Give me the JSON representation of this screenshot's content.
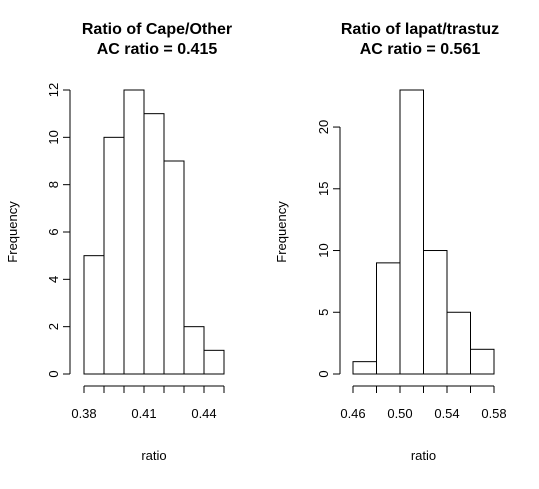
{
  "chart_data": [
    {
      "type": "histogram",
      "title": [
        "Ratio of Cape/Other",
        "AC ratio = 0.415"
      ],
      "xlabel": "ratio",
      "ylabel": "Frequency",
      "bin_edges": [
        0.38,
        0.39,
        0.4,
        0.41,
        0.42,
        0.43,
        0.44,
        0.45
      ],
      "counts": [
        5,
        10,
        12,
        11,
        9,
        2,
        1
      ],
      "xlim": [
        0.38,
        0.45
      ],
      "ylim": [
        0,
        12
      ],
      "xticks": [
        0.38,
        0.41,
        0.44
      ],
      "xtick_labels": [
        "0.38",
        "0.41",
        "0.44"
      ],
      "yticks": [
        0,
        2,
        4,
        6,
        8,
        10,
        12
      ],
      "ytick_labels": [
        "0",
        "2",
        "4",
        "6",
        "8",
        "10",
        "12"
      ]
    },
    {
      "type": "histogram",
      "title": [
        "Ratio of lapat/trastuz",
        "AC ratio = 0.561"
      ],
      "xlabel": "ratio",
      "ylabel": "Frequency",
      "bin_edges": [
        0.46,
        0.48,
        0.5,
        0.52,
        0.54,
        0.56,
        0.58
      ],
      "counts": [
        1,
        9,
        23,
        10,
        5,
        2
      ],
      "xlim": [
        0.46,
        0.58
      ],
      "ylim": [
        0,
        23
      ],
      "xticks": [
        0.46,
        0.5,
        0.54,
        0.58
      ],
      "xtick_labels": [
        "0.46",
        "0.50",
        "0.54",
        "0.58"
      ],
      "extra_xticks": [
        0.48,
        0.52,
        0.56
      ],
      "yticks": [
        0,
        5,
        10,
        15,
        20
      ],
      "ytick_labels": [
        "0",
        "5",
        "10",
        "15",
        "20"
      ]
    }
  ]
}
